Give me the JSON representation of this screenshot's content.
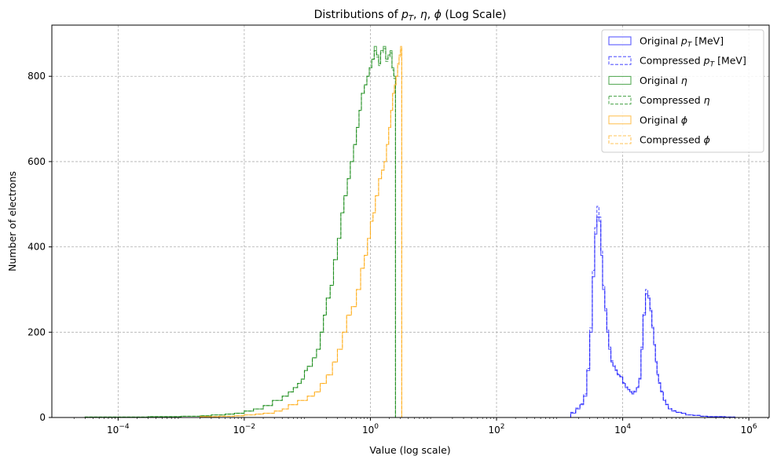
{
  "chart_data": {
    "type": "histogram",
    "title": "Distributions of p_T, η, ϕ (Log Scale)",
    "title_parts": [
      "Distributions of ",
      "p",
      "T",
      ", ",
      "η",
      ", ",
      "ϕ",
      " (Log Scale)"
    ],
    "xlabel": "Value (log scale)",
    "ylabel": "Number of electrons",
    "xscale": "log",
    "xlim": [
      8.9e-06,
      2100000
    ],
    "ylim": [
      0,
      920
    ],
    "xticks": [
      {
        "value": 0.0001,
        "base": "10",
        "exp": "−4"
      },
      {
        "value": 0.01,
        "base": "10",
        "exp": "−2"
      },
      {
        "value": 1,
        "base": "10",
        "exp": "0"
      },
      {
        "value": 100,
        "base": "10",
        "exp": "2"
      },
      {
        "value": 10000,
        "base": "10",
        "exp": "4"
      },
      {
        "value": 1000000,
        "base": "10",
        "exp": "6"
      }
    ],
    "yticks": [
      0,
      200,
      400,
      600,
      800
    ],
    "grid": true,
    "legend_position": "upper right",
    "legend": [
      {
        "label": "Original ",
        "math": "p",
        "sub": "T",
        "suffix": " [MeV]",
        "color": "#0000ff",
        "dashed": false
      },
      {
        "label": "Compressed ",
        "math": "p",
        "sub": "T",
        "suffix": " [MeV]",
        "color": "#0000ff",
        "dashed": true
      },
      {
        "label": "Original ",
        "math": "η",
        "sub": "",
        "suffix": "",
        "color": "#008000",
        "dashed": false
      },
      {
        "label": "Compressed ",
        "math": "η",
        "sub": "",
        "suffix": "",
        "color": "#008000",
        "dashed": true
      },
      {
        "label": "Original ",
        "math": "ϕ",
        "sub": "",
        "suffix": "",
        "color": "#ffa500",
        "dashed": false
      },
      {
        "label": "Compressed ",
        "math": "ϕ",
        "sub": "",
        "suffix": "",
        "color": "#ffa500",
        "dashed": true
      }
    ],
    "series": [
      {
        "name": "pT",
        "color": "#0000ff",
        "edges": [
          1500,
          1800,
          2100,
          2400,
          2700,
          3000,
          3300,
          3600,
          3900,
          4200,
          4500,
          4800,
          5200,
          5600,
          6000,
          6500,
          7000,
          7600,
          8200,
          9000,
          10000,
          11000,
          12000,
          13000,
          14000,
          15000,
          16500,
          18000,
          19500,
          21000,
          23000,
          25000,
          27000,
          29000,
          31000,
          33000,
          35000,
          37000,
          40000,
          44000,
          48000,
          53000,
          60000,
          70000,
          85000,
          100000,
          130000,
          170000,
          220000,
          300000,
          420000,
          600000,
          900000
        ],
        "counts": [
          10,
          20,
          30,
          50,
          110,
          200,
          330,
          430,
          470,
          460,
          380,
          300,
          250,
          200,
          160,
          130,
          120,
          110,
          100,
          95,
          80,
          70,
          65,
          60,
          55,
          60,
          70,
          90,
          160,
          240,
          290,
          280,
          250,
          210,
          170,
          130,
          100,
          80,
          60,
          40,
          30,
          20,
          15,
          12,
          10,
          6,
          5,
          3,
          2,
          2,
          1,
          0
        ],
        "counts_compressed": [
          12,
          22,
          32,
          55,
          115,
          210,
          345,
          445,
          495,
          470,
          390,
          310,
          255,
          205,
          165,
          133,
          122,
          112,
          102,
          97,
          82,
          72,
          66,
          62,
          57,
          62,
          72,
          92,
          165,
          245,
          300,
          285,
          255,
          215,
          172,
          132,
          102,
          82,
          62,
          42,
          31,
          21,
          16,
          12,
          10,
          6,
          5,
          3,
          2,
          2,
          1,
          0
        ]
      },
      {
        "name": "eta",
        "color": "#008000",
        "edges": [
          3e-05,
          0.0001,
          0.0003,
          0.001,
          0.002,
          0.003,
          0.005,
          0.007,
          0.01,
          0.014,
          0.02,
          0.028,
          0.04,
          0.05,
          0.06,
          0.07,
          0.08,
          0.09,
          0.1,
          0.12,
          0.14,
          0.16,
          0.18,
          0.2,
          0.23,
          0.26,
          0.3,
          0.34,
          0.38,
          0.43,
          0.48,
          0.54,
          0.6,
          0.66,
          0.72,
          0.8,
          0.88,
          0.96,
          1.05,
          1.15,
          1.25,
          1.35,
          1.45,
          1.6,
          1.75,
          1.9,
          2.05,
          2.2,
          2.35,
          2.5
        ],
        "counts": [
          1,
          1,
          2,
          3,
          4,
          6,
          8,
          10,
          15,
          20,
          28,
          40,
          50,
          60,
          70,
          80,
          90,
          110,
          120,
          140,
          160,
          200,
          240,
          280,
          310,
          370,
          420,
          480,
          520,
          560,
          600,
          640,
          680,
          720,
          760,
          780,
          800,
          820,
          840,
          870,
          850,
          830,
          860,
          870,
          840,
          850,
          860,
          820,
          800
        ],
        "counts_compressed": [
          1,
          1,
          2,
          3,
          4,
          6,
          8,
          10,
          15,
          20,
          28,
          40,
          50,
          60,
          70,
          80,
          90,
          110,
          120,
          140,
          160,
          200,
          240,
          280,
          310,
          370,
          420,
          480,
          520,
          560,
          600,
          640,
          680,
          720,
          760,
          780,
          800,
          820,
          840,
          860,
          845,
          825,
          855,
          865,
          835,
          845,
          855,
          815,
          795
        ]
      },
      {
        "name": "phi",
        "color": "#ffa500",
        "edges": [
          0.002,
          0.004,
          0.007,
          0.01,
          0.015,
          0.02,
          0.03,
          0.04,
          0.05,
          0.07,
          0.1,
          0.13,
          0.16,
          0.2,
          0.25,
          0.3,
          0.36,
          0.42,
          0.5,
          0.6,
          0.7,
          0.8,
          0.9,
          1.0,
          1.1,
          1.2,
          1.35,
          1.5,
          1.65,
          1.8,
          1.95,
          2.1,
          2.25,
          2.4,
          2.55,
          2.7,
          2.85,
          3.0,
          3.14
        ],
        "counts": [
          2,
          3,
          4,
          6,
          8,
          10,
          15,
          20,
          30,
          40,
          50,
          60,
          80,
          100,
          130,
          160,
          200,
          240,
          260,
          300,
          350,
          380,
          420,
          460,
          480,
          520,
          560,
          580,
          600,
          640,
          680,
          720,
          760,
          780,
          800,
          830,
          850,
          870
        ],
        "counts_compressed": [
          2,
          3,
          4,
          6,
          8,
          10,
          15,
          20,
          30,
          40,
          50,
          60,
          80,
          100,
          130,
          160,
          200,
          240,
          260,
          300,
          350,
          380,
          420,
          460,
          480,
          520,
          560,
          580,
          600,
          640,
          680,
          720,
          760,
          780,
          800,
          825,
          845,
          865
        ]
      }
    ]
  }
}
